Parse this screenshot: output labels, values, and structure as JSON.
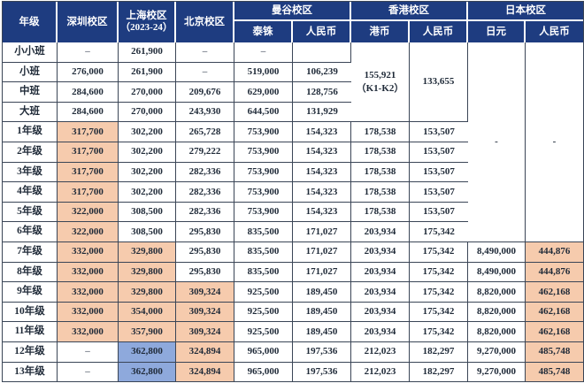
{
  "colors": {
    "header_bg": "#1e3c80",
    "header_text": "#ffffff",
    "highlight_orange": "#f6cbad",
    "highlight_blue": "#8ea9dc",
    "grid_line": "#3a4556",
    "body_text": "#1f2a38"
  },
  "table": {
    "header": {
      "grade": "年级",
      "shenzhen": "深圳校区",
      "shanghai_line1": "上海校区",
      "shanghai_line2": "（2023-24）",
      "beijing": "北京校区",
      "groups": [
        {
          "label": "曼谷校区",
          "sub1": "泰铢",
          "sub2": "人民币"
        },
        {
          "label": "香港校区",
          "sub1": "港币",
          "sub2": "人民币"
        },
        {
          "label": "日本校区",
          "sub1": "日元",
          "sub2": "人民币"
        }
      ]
    },
    "rows": [
      {
        "label": "小小班",
        "cells": [
          {
            "t": "–",
            "dash": true
          },
          {
            "t": "261,900"
          },
          {
            "t": "–",
            "dash": true
          },
          {
            "t": "–",
            "dash": true
          },
          {
            "t": ""
          },
          {
            "t": "155,921\n（K1-K2）",
            "rs": 4
          },
          {
            "t": "133,655",
            "rs": 4
          },
          {
            "t": "-",
            "rs": 10
          },
          {
            "t": "-",
            "rs": 10
          }
        ]
      },
      {
        "label": "小班",
        "cells": [
          {
            "t": "276,000"
          },
          {
            "t": "261,900"
          },
          {
            "t": "–",
            "dash": true
          },
          {
            "t": "519,000"
          },
          {
            "t": "106,239"
          },
          null,
          null,
          null,
          null
        ]
      },
      {
        "label": "中班",
        "cells": [
          {
            "t": "284,600"
          },
          {
            "t": "270,000"
          },
          {
            "t": "209,676"
          },
          {
            "t": "629,000"
          },
          {
            "t": "128,756"
          },
          null,
          null,
          null,
          null
        ]
      },
      {
        "label": "大班",
        "cells": [
          {
            "t": "284,600"
          },
          {
            "t": "270,000"
          },
          {
            "t": "243,930"
          },
          {
            "t": "644,500"
          },
          {
            "t": "131,929"
          },
          null,
          null,
          null,
          null
        ]
      },
      {
        "label": "1年级",
        "cells": [
          {
            "t": "317,700",
            "bg": "orange"
          },
          {
            "t": "302,200"
          },
          {
            "t": "265,728"
          },
          {
            "t": "753,900"
          },
          {
            "t": "154,323"
          },
          {
            "t": "178,538"
          },
          {
            "t": "153,507"
          },
          null,
          null
        ]
      },
      {
        "label": "2年级",
        "cells": [
          {
            "t": "317,700",
            "bg": "orange"
          },
          {
            "t": "302,200"
          },
          {
            "t": "279,222"
          },
          {
            "t": "753,900"
          },
          {
            "t": "154,323"
          },
          {
            "t": "178,538"
          },
          {
            "t": "153,507"
          },
          null,
          null
        ]
      },
      {
        "label": "3年级",
        "cells": [
          {
            "t": "317,700",
            "bg": "orange"
          },
          {
            "t": "302,200"
          },
          {
            "t": "282,336"
          },
          {
            "t": "753,900"
          },
          {
            "t": "154,323"
          },
          {
            "t": "178,538"
          },
          {
            "t": "153,507"
          },
          null,
          null
        ]
      },
      {
        "label": "4年级",
        "cells": [
          {
            "t": "317,700",
            "bg": "orange"
          },
          {
            "t": "302,200"
          },
          {
            "t": "282,336"
          },
          {
            "t": "753,900"
          },
          {
            "t": "154,323"
          },
          {
            "t": "178,538"
          },
          {
            "t": "153,507"
          },
          null,
          null
        ]
      },
      {
        "label": "5年级",
        "cells": [
          {
            "t": "322,000",
            "bg": "orange"
          },
          {
            "t": "308,500"
          },
          {
            "t": "282,336"
          },
          {
            "t": "753,900"
          },
          {
            "t": "154,323"
          },
          {
            "t": "178,538"
          },
          {
            "t": "153,507"
          },
          null,
          null
        ]
      },
      {
        "label": "6年级",
        "cells": [
          {
            "t": "322,000",
            "bg": "orange"
          },
          {
            "t": "308,500"
          },
          {
            "t": "295,830"
          },
          {
            "t": "835,500"
          },
          {
            "t": "171,027"
          },
          {
            "t": "203,934"
          },
          {
            "t": "175,342"
          },
          null,
          null
        ]
      },
      {
        "label": "7年级",
        "cells": [
          {
            "t": "332,000",
            "bg": "orange"
          },
          {
            "t": "329,800",
            "bg": "orange"
          },
          {
            "t": "295,830"
          },
          {
            "t": "835,500"
          },
          {
            "t": "171,027"
          },
          {
            "t": "203,934"
          },
          {
            "t": "175,342"
          },
          {
            "t": "8,490,000"
          },
          {
            "t": "444,876",
            "bg": "orange"
          }
        ]
      },
      {
        "label": "8年级",
        "cells": [
          {
            "t": "332,000",
            "bg": "orange"
          },
          {
            "t": "329,800",
            "bg": "orange"
          },
          {
            "t": "295,830"
          },
          {
            "t": "835,500"
          },
          {
            "t": "171,027"
          },
          {
            "t": "203,934"
          },
          {
            "t": "175,342"
          },
          {
            "t": "8,490,000"
          },
          {
            "t": "444,876",
            "bg": "orange"
          }
        ]
      },
      {
        "label": "9年级",
        "cells": [
          {
            "t": "332,000",
            "bg": "orange"
          },
          {
            "t": "329,800",
            "bg": "orange"
          },
          {
            "t": "309,324",
            "bg": "orange"
          },
          {
            "t": "925,500"
          },
          {
            "t": "189,450"
          },
          {
            "t": "203,934"
          },
          {
            "t": "175,342"
          },
          {
            "t": "8,820,000"
          },
          {
            "t": "462,168",
            "bg": "orange"
          }
        ]
      },
      {
        "label": "10年级",
        "cells": [
          {
            "t": "332,000",
            "bg": "orange"
          },
          {
            "t": "354,000",
            "bg": "orange"
          },
          {
            "t": "309,324",
            "bg": "orange"
          },
          {
            "t": "925,500"
          },
          {
            "t": "189,450"
          },
          {
            "t": "203,934"
          },
          {
            "t": "175,342"
          },
          {
            "t": "8,820,000"
          },
          {
            "t": "462,168",
            "bg": "orange"
          }
        ]
      },
      {
        "label": "11年级",
        "cells": [
          {
            "t": "332,000",
            "bg": "orange"
          },
          {
            "t": "357,900",
            "bg": "orange"
          },
          {
            "t": "309,324",
            "bg": "orange"
          },
          {
            "t": "925,500"
          },
          {
            "t": "189,450"
          },
          {
            "t": "203,934"
          },
          {
            "t": "175,342"
          },
          {
            "t": "8,820,000"
          },
          {
            "t": "462,168",
            "bg": "orange"
          }
        ]
      },
      {
        "label": "12年级",
        "cells": [
          {
            "t": "–",
            "dash": true
          },
          {
            "t": "362,800",
            "bg": "blue"
          },
          {
            "t": "324,894",
            "bg": "orange"
          },
          {
            "t": "965,000"
          },
          {
            "t": "197,536"
          },
          {
            "t": "212,023"
          },
          {
            "t": "182,297"
          },
          {
            "t": "9,270,000"
          },
          {
            "t": "485,748",
            "bg": "orange"
          }
        ]
      },
      {
        "label": "13年级",
        "cells": [
          {
            "t": "–",
            "dash": true
          },
          {
            "t": "362,800",
            "bg": "blue"
          },
          {
            "t": "324,894",
            "bg": "orange"
          },
          {
            "t": "965,000"
          },
          {
            "t": "197,536"
          },
          {
            "t": "212,023"
          },
          {
            "t": "182,297"
          },
          {
            "t": "9,270,000"
          },
          {
            "t": "485,748",
            "bg": "orange"
          }
        ]
      }
    ]
  }
}
